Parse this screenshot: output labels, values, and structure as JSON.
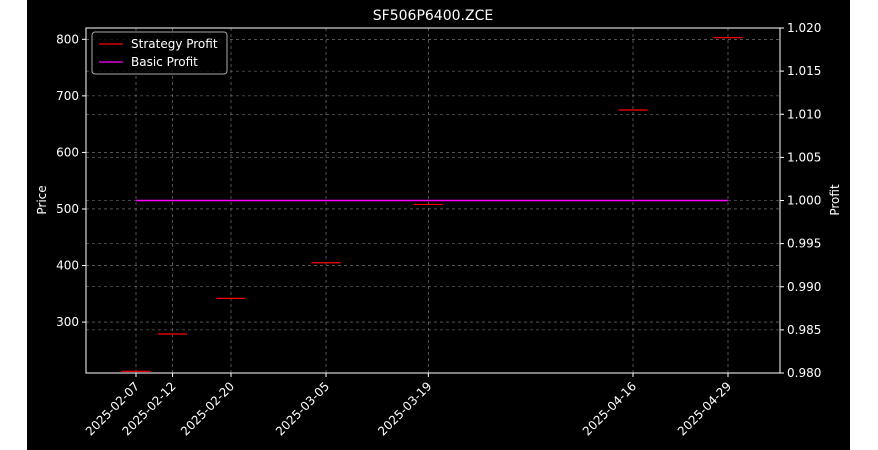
{
  "chart_data": {
    "type": "line",
    "title": "SF506P6400.ZCE",
    "ylabel_left": "Price",
    "ylabel_right": "Profit",
    "xlabel": "",
    "categories": [
      "2025-02-07",
      "2025-02-12",
      "2025-02-20",
      "2025-03-05",
      "2025-03-19",
      "2025-04-16",
      "2025-04-29"
    ],
    "y_left_ticks": [
      300,
      400,
      500,
      600,
      700,
      800
    ],
    "y_left_lim": [
      210,
      820
    ],
    "y_right_ticks": [
      "0.980",
      "0.985",
      "0.990",
      "0.995",
      "1.000",
      "1.005",
      "1.010",
      "1.015",
      "1.020"
    ],
    "y_right_lim": [
      0.98,
      1.02
    ],
    "grid": true,
    "legend_position": "top-left",
    "series": [
      {
        "name": "Strategy Profit",
        "color": "#ff0000",
        "axis": "left",
        "style": "step-segments",
        "values": [
          {
            "x_start": "2025-02-05",
            "x_end": "2025-02-09",
            "y": 213
          },
          {
            "x_start": "2025-02-10",
            "x_end": "2025-02-14",
            "y": 279
          },
          {
            "x_start": "2025-02-18",
            "x_end": "2025-02-22",
            "y": 342
          },
          {
            "x_start": "2025-03-03",
            "x_end": "2025-03-07",
            "y": 405
          },
          {
            "x_start": "2025-03-17",
            "x_end": "2025-03-21",
            "y": 508
          },
          {
            "x_start": "2025-04-14",
            "x_end": "2025-04-18",
            "y": 675
          },
          {
            "x_start": "2025-04-27",
            "x_end": "2025-05-01",
            "y": 803
          }
        ]
      },
      {
        "name": "Basic Profit",
        "color": "#ff00ff",
        "axis": "right",
        "values": [
          {
            "x": "2025-02-07",
            "y": 1.0
          },
          {
            "x": "2025-04-29",
            "y": 1.0
          }
        ]
      }
    ]
  }
}
